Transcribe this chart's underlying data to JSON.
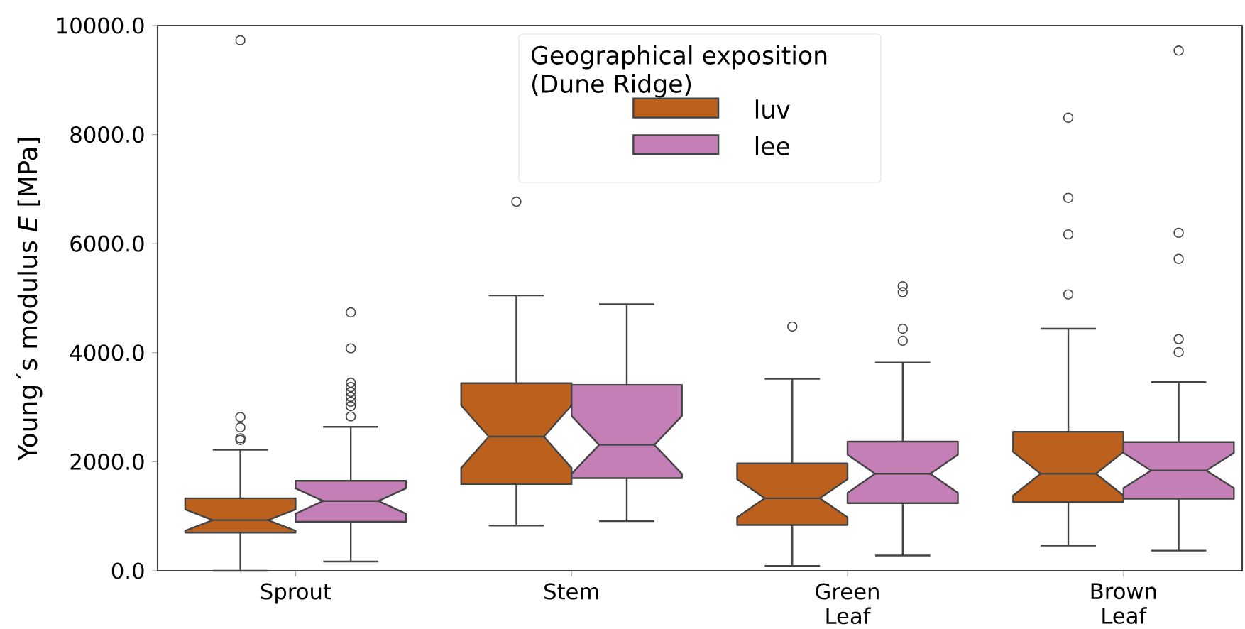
{
  "chart_data": {
    "type": "box",
    "ylabel": "Young´s modulus *E* [MPa]",
    "legend_title": "Geographical exposition (Dune Ridge)",
    "legend": "top",
    "categories": [
      "Sprout",
      "Stem",
      "Green Leaf",
      "Brown Leaf"
    ],
    "ylim": [
      0,
      10000
    ],
    "yticks": [
      {
        "value": 0,
        "label": "0.0"
      },
      {
        "value": 2000,
        "label": "2000.0"
      },
      {
        "value": 4000,
        "label": "4000.0"
      },
      {
        "value": 6000,
        "label": "6000.0"
      },
      {
        "value": 8000,
        "label": "8000.0"
      },
      {
        "value": 10000,
        "label": "10000.0"
      }
    ],
    "series": [
      {
        "name": "luv",
        "color": "#bb611d",
        "boxes": [
          {
            "low": 0,
            "q1": 700,
            "median": 930,
            "q3": 1330,
            "high": 2220,
            "outliers": [
              2400,
              2430,
              2630,
              2820,
              9730
            ]
          },
          {
            "low": 830,
            "q1": 1590,
            "median": 2460,
            "q3": 3440,
            "high": 5050,
            "outliers": [
              6770
            ]
          },
          {
            "low": 90,
            "q1": 840,
            "median": 1330,
            "q3": 1970,
            "high": 3520,
            "outliers": [
              4480
            ]
          },
          {
            "low": 460,
            "q1": 1260,
            "median": 1780,
            "q3": 2550,
            "high": 4440,
            "outliers": [
              5070,
              6170,
              6840,
              8310
            ]
          }
        ]
      },
      {
        "name": "lee",
        "color": "#c47fb6",
        "boxes": [
          {
            "low": 170,
            "q1": 900,
            "median": 1280,
            "q3": 1650,
            "high": 2640,
            "outliers": [
              2830,
              3020,
              3100,
              3190,
              3280,
              3370,
              3450,
              4080,
              4740
            ]
          },
          {
            "low": 910,
            "q1": 1700,
            "median": 2310,
            "q3": 3410,
            "high": 4890
          },
          {
            "low": 280,
            "q1": 1240,
            "median": 1780,
            "q3": 2370,
            "high": 3820,
            "outliers": [
              4220,
              4440,
              5110,
              5220
            ]
          },
          {
            "low": 370,
            "q1": 1320,
            "median": 1840,
            "q3": 2360,
            "high": 3460,
            "outliers": [
              4010,
              4250,
              5720,
              6200,
              9540
            ]
          }
        ]
      }
    ]
  }
}
